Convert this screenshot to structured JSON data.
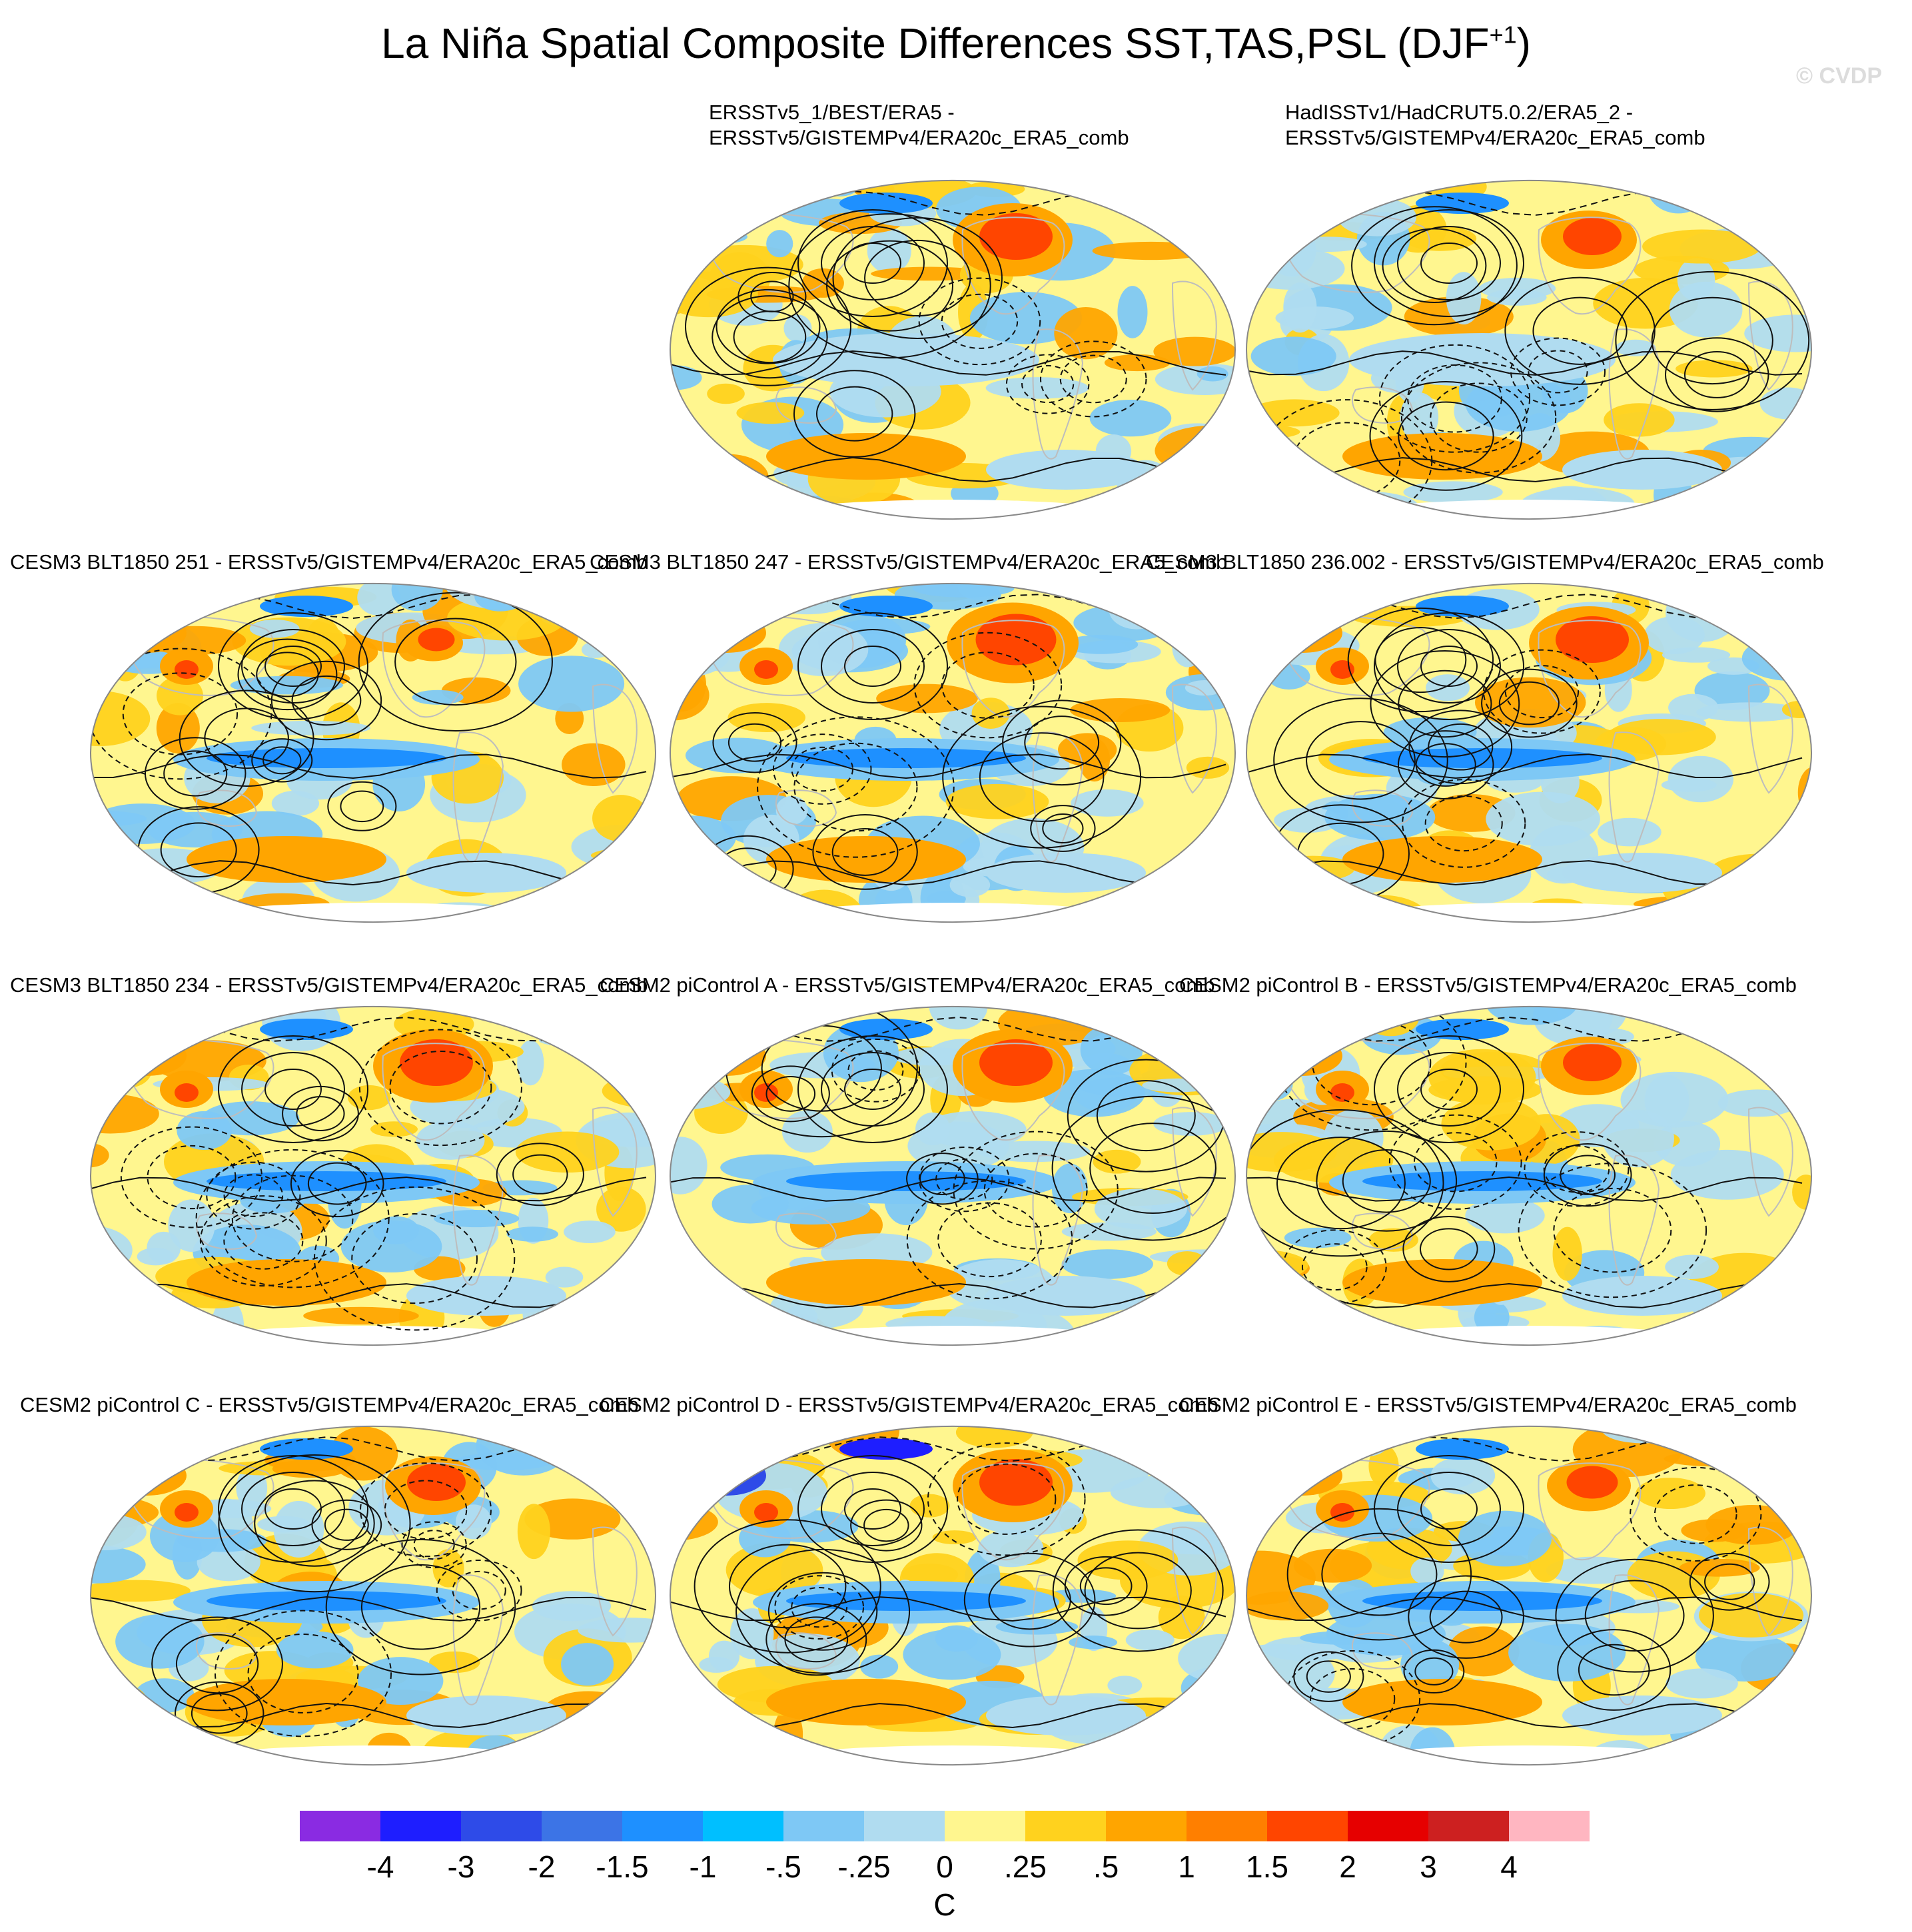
{
  "title": {
    "main": "La Niña Spatial Composite Differences SST,TAS,PSL (DJF",
    "superscript": "+1",
    "close": ")"
  },
  "watermark": "© CVDP",
  "panels": [
    {
      "label": "ERSSTv5_1/BEST/ERA5 -\nERSSTv5/GISTEMPv4/ERA20c_ERA5_comb",
      "pattern": "obs1"
    },
    {
      "label": "HadISSTv1/HadCRUT5.0.2/ERA5_2 -\nERSSTv5/GISTEMPv4/ERA20c_ERA5_comb",
      "pattern": "obs2"
    },
    {
      "label": "CESM3 BLT1850 251 - ERSSTv5/GISTEMPv4/ERA20c_ERA5_comb",
      "pattern": "m1"
    },
    {
      "label": "CESM3 BLT1850 247 - ERSSTv5/GISTEMPv4/ERA20c_ERA5_comb",
      "pattern": "m2"
    },
    {
      "label": "CESM3 BLT1850 236.002 - ERSSTv5/GISTEMPv4/ERA20c_ERA5_comb",
      "pattern": "m3"
    },
    {
      "label": "CESM3 BLT1850 234 - ERSSTv5/GISTEMPv4/ERA20c_ERA5_comb",
      "pattern": "m4"
    },
    {
      "label": "CESM2 piControl A - ERSSTv5/GISTEMPv4/ERA20c_ERA5_comb",
      "pattern": "m5"
    },
    {
      "label": "CESM2 piControl B - ERSSTv5/GISTEMPv4/ERA20c_ERA5_comb",
      "pattern": "m6"
    },
    {
      "label": "CESM2 piControl C - ERSSTv5/GISTEMPv4/ERA20c_ERA5_comb",
      "pattern": "m7"
    },
    {
      "label": "CESM2 piControl D - ERSSTv5/GISTEMPv4/ERA20c_ERA5_comb",
      "pattern": "m8"
    },
    {
      "label": "CESM2 piControl E - ERSSTv5/GISTEMPv4/ERA20c_ERA5_comb",
      "pattern": "m9"
    }
  ],
  "colorbar": {
    "colors": [
      "#8a2be2",
      "#1e1eff",
      "#2e4be8",
      "#3c74e6",
      "#1e90ff",
      "#00bfff",
      "#7ec8f5",
      "#b0dcf0",
      "#fff68f",
      "#ffd21e",
      "#ffa500",
      "#ff7f00",
      "#ff4500",
      "#e60000",
      "#cd2020",
      "#ffb6c1"
    ],
    "ticks": [
      "-4",
      "-3",
      "-2",
      "-1.5",
      "-1",
      "-.5",
      "-.25",
      "0",
      ".25",
      ".5",
      "1",
      "1.5",
      "2",
      "3",
      "4"
    ],
    "unit": "C"
  }
}
